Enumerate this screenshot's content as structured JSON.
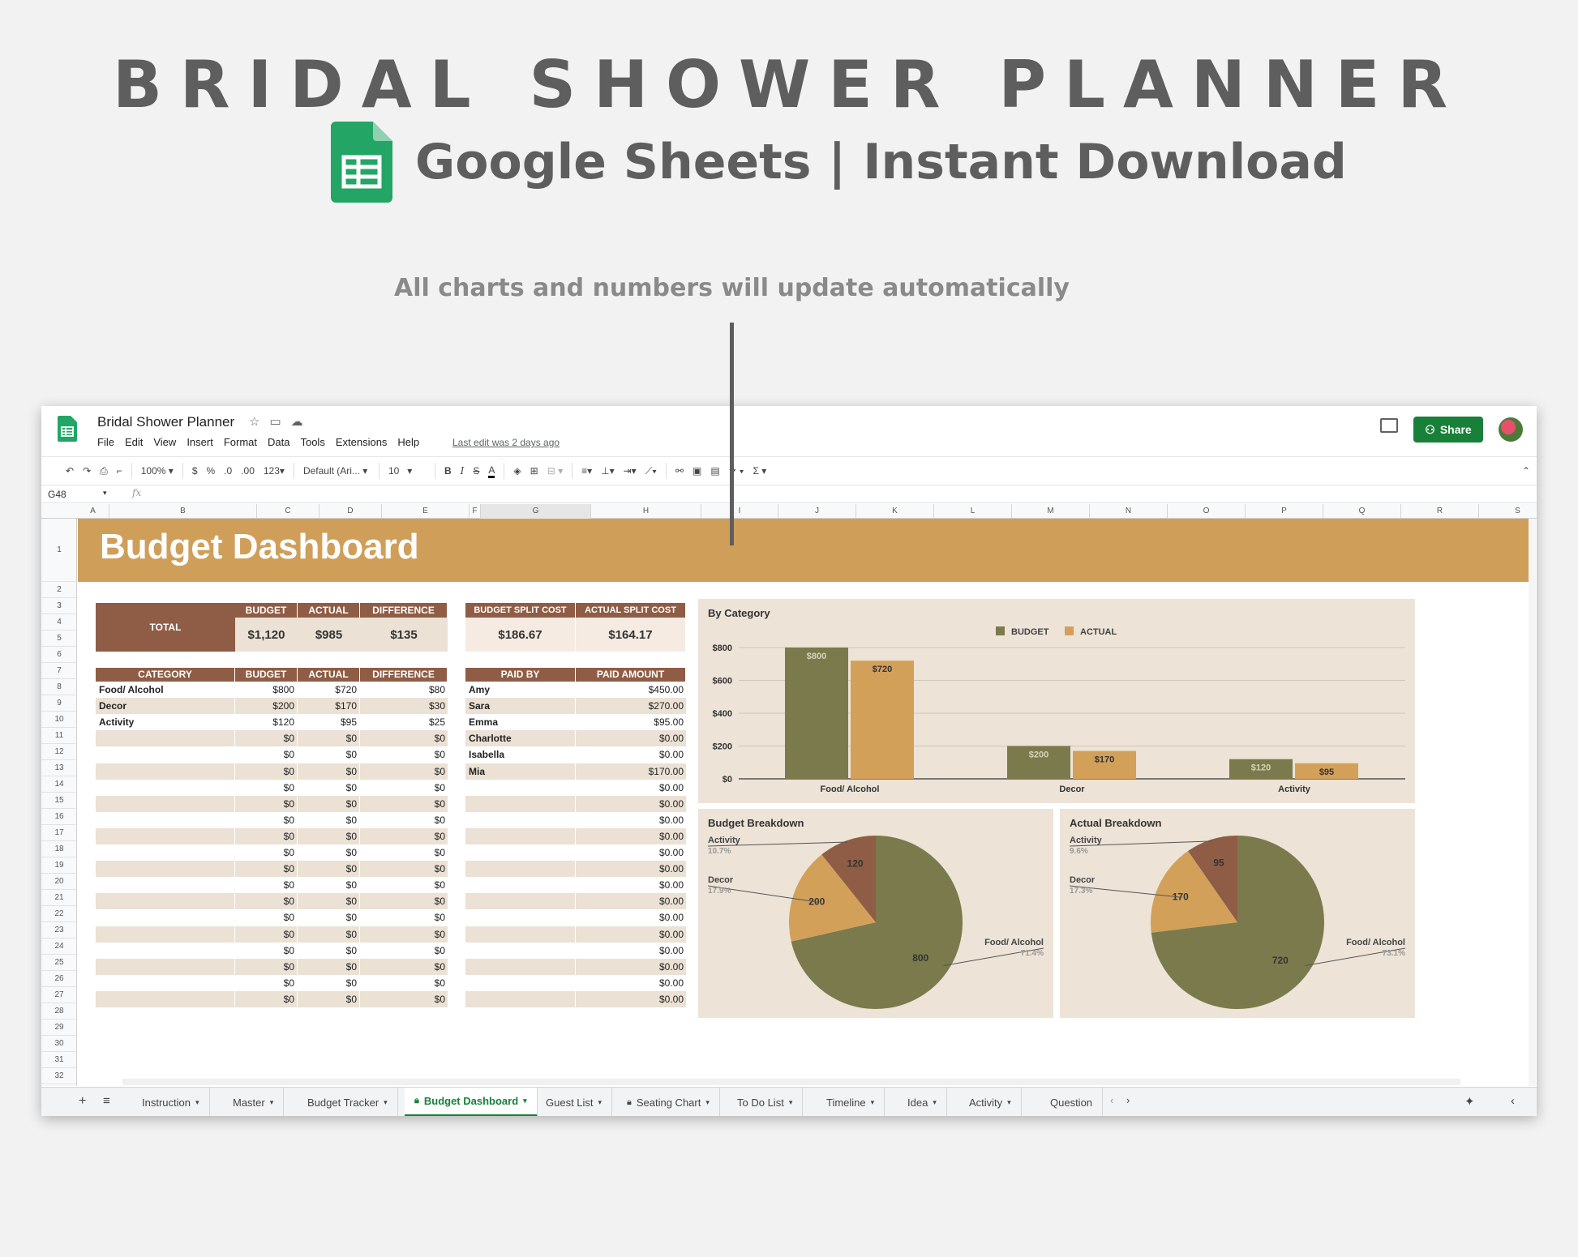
{
  "hero": {
    "title": "BRIDAL SHOWER PLANNER",
    "subtitle": "Google Sheets | Instant Download",
    "caption": "All charts and numbers will update automatically"
  },
  "app": {
    "doc_title": "Bridal Shower Planner",
    "menu": [
      "File",
      "Edit",
      "View",
      "Insert",
      "Format",
      "Data",
      "Tools",
      "Extensions",
      "Help"
    ],
    "last_edit": "Last edit was 2 days ago",
    "share_label": "Share"
  },
  "toolbar": {
    "zoom": "100%",
    "currency": "$",
    "percent": "%",
    "dec_less": ".0",
    "dec_more": ".00",
    "format_more": "123",
    "font": "Default (Ari...",
    "font_size": "10"
  },
  "formula_bar": {
    "cell_ref": "G48",
    "fx": "fx"
  },
  "columns": [
    "A",
    "B",
    "C",
    "D",
    "E",
    "F",
    "G",
    "H",
    "I",
    "J",
    "K",
    "L",
    "M",
    "N",
    "O",
    "P",
    "Q",
    "R",
    "S"
  ],
  "rows": [
    "1",
    "2",
    "3",
    "4",
    "5",
    "6",
    "7",
    "8",
    "9",
    "10",
    "11",
    "12",
    "13",
    "14",
    "15",
    "16",
    "17",
    "18",
    "19",
    "20",
    "21",
    "22",
    "23",
    "24",
    "25",
    "26",
    "27",
    "28",
    "29",
    "30",
    "31",
    "32"
  ],
  "dashboard": {
    "title": "Budget Dashboard",
    "total": {
      "label": "TOTAL",
      "headers": [
        "BUDGET",
        "ACTUAL",
        "DIFFERENCE"
      ],
      "values": [
        "$1,120",
        "$985",
        "$135"
      ]
    },
    "split": {
      "headers": [
        "BUDGET SPLIT COST",
        "ACTUAL SPLIT COST"
      ],
      "values": [
        "$186.67",
        "$164.17"
      ]
    },
    "category_table": {
      "headers": [
        "CATEGORY",
        "BUDGET",
        "ACTUAL",
        "DIFFERENCE"
      ],
      "rows": [
        [
          "Food/ Alcohol",
          "$800",
          "$720",
          "$80"
        ],
        [
          "Decor",
          "$200",
          "$170",
          "$30"
        ],
        [
          "Activity",
          "$120",
          "$95",
          "$25"
        ],
        [
          "",
          "$0",
          "$0",
          "$0"
        ],
        [
          "",
          "$0",
          "$0",
          "$0"
        ],
        [
          "",
          "$0",
          "$0",
          "$0"
        ],
        [
          "",
          "$0",
          "$0",
          "$0"
        ],
        [
          "",
          "$0",
          "$0",
          "$0"
        ],
        [
          "",
          "$0",
          "$0",
          "$0"
        ],
        [
          "",
          "$0",
          "$0",
          "$0"
        ],
        [
          "",
          "$0",
          "$0",
          "$0"
        ],
        [
          "",
          "$0",
          "$0",
          "$0"
        ],
        [
          "",
          "$0",
          "$0",
          "$0"
        ],
        [
          "",
          "$0",
          "$0",
          "$0"
        ],
        [
          "",
          "$0",
          "$0",
          "$0"
        ],
        [
          "",
          "$0",
          "$0",
          "$0"
        ],
        [
          "",
          "$0",
          "$0",
          "$0"
        ],
        [
          "",
          "$0",
          "$0",
          "$0"
        ],
        [
          "",
          "$0",
          "$0",
          "$0"
        ],
        [
          "",
          "$0",
          "$0",
          "$0"
        ]
      ]
    },
    "paid_table": {
      "headers": [
        "PAID BY",
        "PAID AMOUNT"
      ],
      "rows": [
        [
          "Amy",
          "$450.00"
        ],
        [
          "Sara",
          "$270.00"
        ],
        [
          "Emma",
          "$95.00"
        ],
        [
          "Charlotte",
          "$0.00"
        ],
        [
          "Isabella",
          "$0.00"
        ],
        [
          "Mia",
          "$170.00"
        ],
        [
          "",
          "$0.00"
        ],
        [
          "",
          "$0.00"
        ],
        [
          "",
          "$0.00"
        ],
        [
          "",
          "$0.00"
        ],
        [
          "",
          "$0.00"
        ],
        [
          "",
          "$0.00"
        ],
        [
          "",
          "$0.00"
        ],
        [
          "",
          "$0.00"
        ],
        [
          "",
          "$0.00"
        ],
        [
          "",
          "$0.00"
        ],
        [
          "",
          "$0.00"
        ],
        [
          "",
          "$0.00"
        ],
        [
          "",
          "$0.00"
        ],
        [
          "",
          "$0.00"
        ]
      ]
    }
  },
  "chart_data": [
    {
      "type": "bar",
      "title": "By Category",
      "categories": [
        "Food/ Alcohol",
        "Decor",
        "Activity"
      ],
      "series": [
        {
          "name": "BUDGET",
          "values": [
            800,
            200,
            120
          ],
          "labels": [
            "$800",
            "$200",
            "$120"
          ]
        },
        {
          "name": "ACTUAL",
          "values": [
            720,
            170,
            95
          ],
          "labels": [
            "$720",
            "$170",
            "$95"
          ]
        }
      ],
      "yticks": [
        "$0",
        "$200",
        "$400",
        "$600",
        "$800"
      ],
      "ylim": [
        0,
        800
      ],
      "legend": "top",
      "grid": true,
      "colors": [
        "#7b7a4d",
        "#d3a05a"
      ]
    },
    {
      "type": "pie",
      "title": "Budget Breakdown",
      "labels": [
        "Food/ Alcohol",
        "Decor",
        "Activity"
      ],
      "values": [
        800,
        200,
        120
      ],
      "value_labels": [
        "800",
        "200",
        "120"
      ],
      "percents": [
        "71.4%",
        "17.9%",
        "10.7%"
      ],
      "colors": [
        "#7b7a4d",
        "#d3a05a",
        "#8f5d46"
      ]
    },
    {
      "type": "pie",
      "title": "Actual Breakdown",
      "labels": [
        "Food/ Alcohol",
        "Decor",
        "Activity"
      ],
      "values": [
        720,
        170,
        95
      ],
      "value_labels": [
        "720",
        "170",
        "95"
      ],
      "percents": [
        "73.1%",
        "17.3%",
        "9.6%"
      ],
      "colors": [
        "#7b7a4d",
        "#d3a05a",
        "#8f5d46"
      ]
    }
  ],
  "tabs": [
    {
      "label": "Instruction"
    },
    {
      "label": "Master"
    },
    {
      "label": "Budget Tracker"
    },
    {
      "label": "Budget Dashboard",
      "active": true
    },
    {
      "label": "Guest List"
    },
    {
      "label": "Seating Chart"
    },
    {
      "label": "To Do List"
    },
    {
      "label": "Timeline"
    },
    {
      "label": "Idea"
    },
    {
      "label": "Activity"
    },
    {
      "label": "Question"
    }
  ]
}
